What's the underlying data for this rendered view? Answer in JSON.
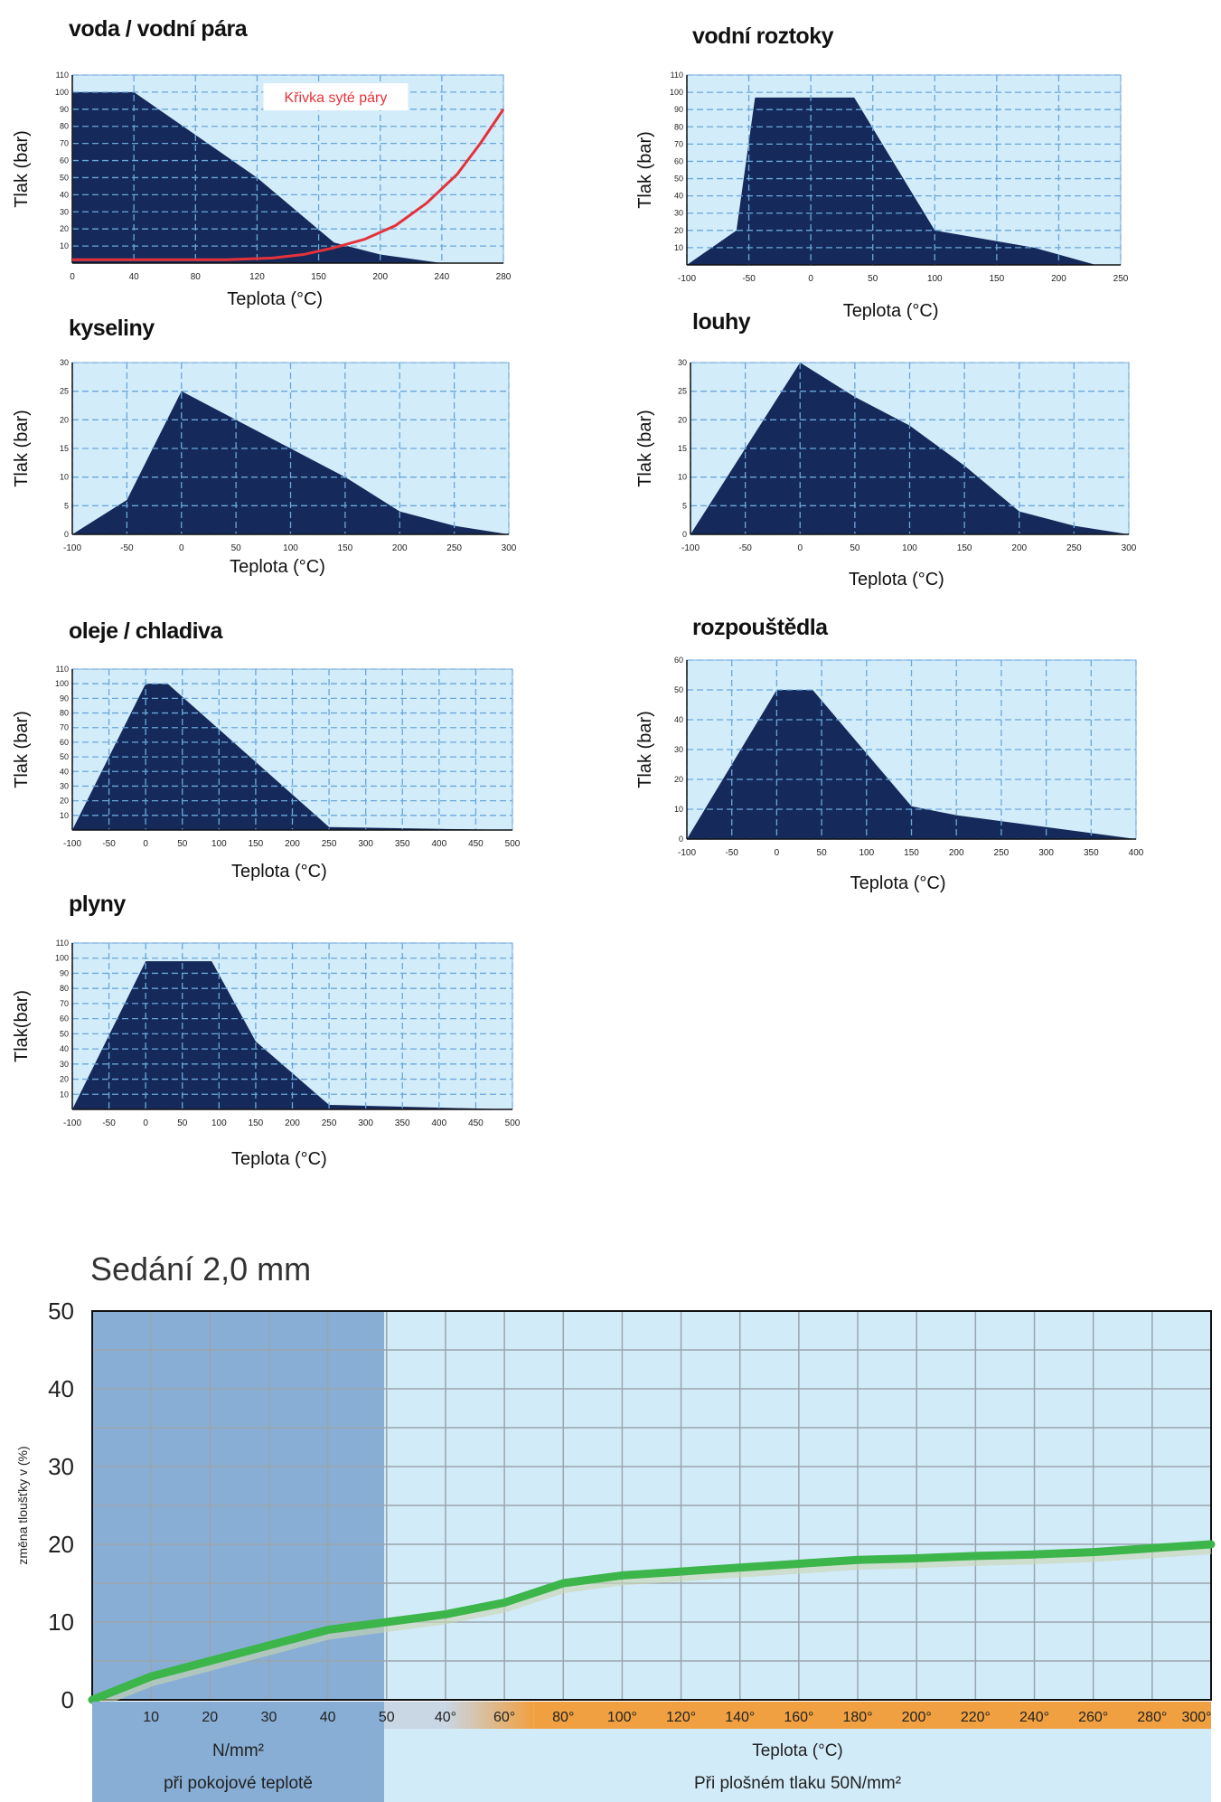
{
  "chart_data": [
    {
      "type": "area",
      "title": "voda / vodní pára",
      "xlabel": "Teplota (°C)",
      "ylabel": "Tlak (bar)",
      "xlim": [
        0,
        280
      ],
      "ylim": [
        0,
        110
      ],
      "xticks": [
        "0",
        "40",
        "80",
        "120",
        "150",
        "200",
        "240",
        "280"
      ],
      "yticks": [
        "10",
        "20",
        "30",
        "40",
        "50",
        "60",
        "70",
        "80",
        "90",
        "100",
        "110"
      ],
      "series": [
        {
          "x": [
            0,
            40,
            120,
            170,
            200,
            240
          ],
          "y": [
            100,
            100,
            50,
            12,
            5,
            0
          ]
        },
        {
          "name": "Křivka syté páry",
          "x": [
            0,
            100,
            130,
            150,
            170,
            190,
            210,
            230,
            250,
            265,
            280
          ],
          "y": [
            2,
            2,
            3,
            5,
            9,
            14,
            22,
            35,
            52,
            70,
            90
          ]
        }
      ],
      "annotation": "Křivka syté páry"
    },
    {
      "type": "area",
      "title": "vodní roztoky",
      "xlabel": "Teplota (°C)",
      "ylabel": "Tlak (bar)",
      "xlim": [
        -100,
        250
      ],
      "ylim": [
        0,
        110
      ],
      "xticks": [
        "-100",
        "-50",
        "0",
        "50",
        "100",
        "150",
        "200",
        "250"
      ],
      "yticks": [
        "10",
        "20",
        "30",
        "40",
        "50",
        "60",
        "70",
        "80",
        "90",
        "100",
        "110"
      ],
      "series": [
        {
          "x": [
            -100,
            -60,
            -45,
            35,
            100,
            180,
            230,
            250
          ],
          "y": [
            0,
            20,
            97,
            97,
            20,
            10,
            0,
            0
          ]
        }
      ]
    },
    {
      "type": "area",
      "title": "kyseliny",
      "xlabel": "Teplota (°C)",
      "ylabel": "Tlak (bar)",
      "xlim": [
        -100,
        300
      ],
      "ylim": [
        0,
        30
      ],
      "xticks": [
        "-100",
        "-50",
        "0",
        "50",
        "100",
        "150",
        "200",
        "250",
        "300"
      ],
      "yticks": [
        "0",
        "5",
        "10",
        "15",
        "20",
        "25",
        "30"
      ],
      "series": [
        {
          "x": [
            -100,
            -50,
            0,
            50,
            100,
            150,
            200,
            250,
            300
          ],
          "y": [
            0,
            6,
            25,
            20,
            15,
            10,
            4,
            1.5,
            0
          ]
        }
      ]
    },
    {
      "type": "area",
      "title": "louhy",
      "xlabel": "Teplota (°C)",
      "ylabel": "Tlak (bar)",
      "xlim": [
        -100,
        300
      ],
      "ylim": [
        0,
        30
      ],
      "xticks": [
        "-100",
        "-50",
        "0",
        "50",
        "100",
        "150",
        "200",
        "250",
        "300"
      ],
      "yticks": [
        "0",
        "5",
        "10",
        "15",
        "20",
        "25",
        "30"
      ],
      "series": [
        {
          "x": [
            -100,
            0,
            50,
            100,
            150,
            200,
            250,
            300
          ],
          "y": [
            0,
            30,
            24,
            19,
            12,
            4,
            1.5,
            0
          ]
        }
      ]
    },
    {
      "type": "area",
      "title": "oleje / chladiva",
      "xlabel": "Teplota (°C)",
      "ylabel": "Tlak (bar)",
      "xlim": [
        -100,
        500
      ],
      "ylim": [
        0,
        110
      ],
      "xticks": [
        "-100",
        "-50",
        "0",
        "50",
        "100",
        "150",
        "200",
        "250",
        "300",
        "350",
        "400",
        "450",
        "500"
      ],
      "yticks": [
        "10",
        "20",
        "30",
        "40",
        "50",
        "60",
        "70",
        "80",
        "90",
        "100",
        "110"
      ],
      "series": [
        {
          "x": [
            -100,
            0,
            30,
            250,
            500
          ],
          "y": [
            0,
            100,
            100,
            2,
            0
          ]
        }
      ]
    },
    {
      "type": "area",
      "title": "rozpouštědla",
      "xlabel": "Teplota (°C)",
      "ylabel": "Tlak (bar)",
      "xlim": [
        -100,
        400
      ],
      "ylim": [
        0,
        60
      ],
      "xticks": [
        "-100",
        "-50",
        "0",
        "50",
        "100",
        "150",
        "200",
        "250",
        "300",
        "350",
        "400"
      ],
      "yticks": [
        "0",
        "10",
        "20",
        "30",
        "40",
        "50",
        "60"
      ],
      "series": [
        {
          "x": [
            -100,
            0,
            40,
            150,
            200,
            300,
            400
          ],
          "y": [
            0,
            50,
            50,
            11,
            8,
            4,
            0
          ]
        }
      ]
    },
    {
      "type": "area",
      "title": "plyny",
      "xlabel": "Teplota (°C)",
      "ylabel": "Tlak(bar)",
      "xlim": [
        -100,
        500
      ],
      "ylim": [
        0,
        110
      ],
      "xticks": [
        "-100",
        "-50",
        "0",
        "50",
        "100",
        "150",
        "200",
        "250",
        "300",
        "350",
        "400",
        "450",
        "500"
      ],
      "yticks": [
        "10",
        "20",
        "30",
        "40",
        "50",
        "60",
        "70",
        "80",
        "90",
        "100",
        "110"
      ],
      "series": [
        {
          "x": [
            -100,
            0,
            90,
            150,
            250,
            500
          ],
          "y": [
            0,
            98,
            98,
            45,
            3,
            0
          ]
        }
      ]
    },
    {
      "type": "line",
      "title": "Sedání 2,0 mm",
      "ylabel": "změna tloušťky v (%)",
      "ylim": [
        0,
        50
      ],
      "yticks": [
        "0",
        "10",
        "20",
        "30",
        "40",
        "50"
      ],
      "xticks": [
        "10",
        "20",
        "30",
        "40",
        "50",
        "40°",
        "60°",
        "80°",
        "100°",
        "120°",
        "140°",
        "160°",
        "180°",
        "200°",
        "220°",
        "240°",
        "260°",
        "280°",
        "300°"
      ],
      "left_label_lines": [
        "N/mm²",
        "při pokojové teplotě"
      ],
      "right_label_lines": [
        "Teplota (°C)",
        "Při plošném tlaku 50N/mm²"
      ],
      "colors": {
        "left_bg": "#88aed5",
        "right_bg": "#d2ebf9",
        "line": "#3cb54a",
        "orange": "#f0a040"
      },
      "series": [
        {
          "x": [
            0,
            10,
            20,
            30,
            40,
            50,
            60,
            70,
            80,
            90,
            100,
            110,
            120,
            130,
            140,
            150,
            160,
            170,
            180,
            190
          ],
          "y": [
            0,
            3,
            5,
            7,
            9,
            10,
            11,
            12.5,
            15,
            16,
            16.5,
            17,
            17.5,
            18,
            18.2,
            18.5,
            18.7,
            19,
            19.5,
            20
          ]
        }
      ]
    }
  ]
}
